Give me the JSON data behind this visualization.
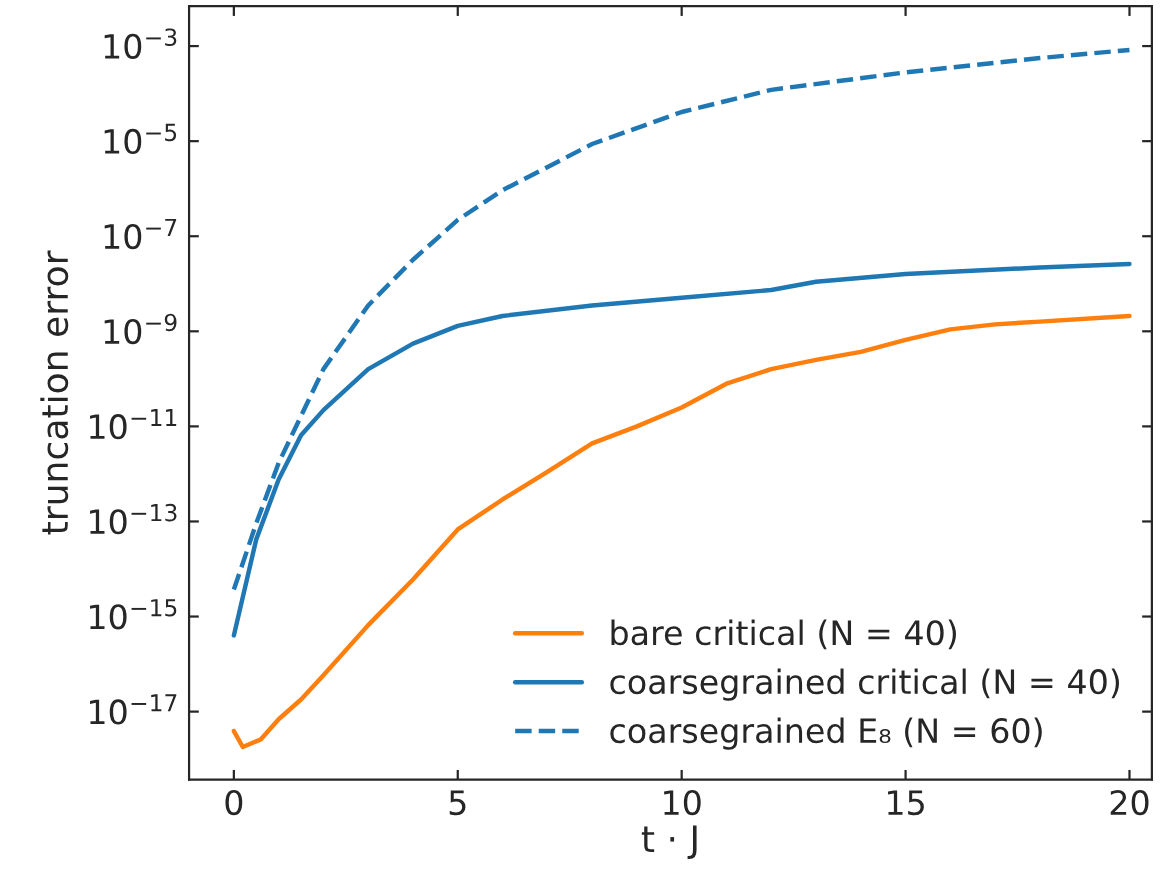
{
  "chart_data": {
    "type": "line",
    "xlabel": "t · J",
    "ylabel": "truncation error",
    "log": "y",
    "grid": false,
    "legend": "bottom right",
    "marker": "none",
    "xlim": [
      -1,
      20.5
    ],
    "xticks": [
      0,
      5,
      10,
      15,
      20
    ],
    "ylim": [
      3.7e-19,
      0.0069
    ],
    "yticks": [
      {
        "value": 1e-17,
        "label": "10$^{−17}$"
      },
      {
        "value": 1e-15,
        "label": "10$^{−15}$"
      },
      {
        "value": 1e-13,
        "label": "10$^{−13}$"
      },
      {
        "value": 1e-11,
        "label": "10$^{−11}$"
      },
      {
        "value": 1e-09,
        "label": "10$^{−9}$"
      },
      {
        "value": 1e-07,
        "label": "10$^{−7}$"
      },
      {
        "value": 1e-05,
        "label": "10$^{−5}$"
      },
      {
        "value": 0.001,
        "label": "10$^{−3}$"
      }
    ],
    "series": [
      {
        "name": "bare critical (N = 40)",
        "color": "#ff7f0e",
        "line_style": "solid",
        "x": [
          0,
          0.2,
          0.6,
          1,
          1.5,
          2,
          3,
          4,
          5,
          6,
          7,
          8,
          9,
          10,
          11,
          12,
          13,
          14,
          15,
          16,
          17,
          18,
          20
        ],
        "values": [
          3.9e-18,
          1.8e-18,
          2.6e-18,
          6.9e-18,
          1.8e-17,
          5.8e-17,
          6.6e-16,
          6e-15,
          6.8e-14,
          2.9e-13,
          1.1e-12,
          4.4e-12,
          1e-11,
          2.5e-11,
          7.9e-11,
          1.6e-10,
          2.5e-10,
          3.7e-10,
          6.6e-10,
          1.1e-09,
          1.4e-09,
          1.6e-09,
          2.1e-09
        ]
      },
      {
        "name": "coarsegrained critical (N = 40)",
        "color": "#1f77b4",
        "line_style": "solid",
        "x": [
          0,
          0.5,
          1,
          1.5,
          2,
          3,
          4,
          5,
          6,
          8,
          10,
          12,
          13,
          15,
          18,
          20
        ],
        "values": [
          4e-16,
          4.2e-14,
          7.6e-13,
          6.5e-12,
          2.2e-11,
          1.6e-10,
          5.5e-10,
          1.3e-09,
          2.1e-09,
          3.5e-09,
          5.1e-09,
          7.4e-09,
          1.1e-08,
          1.6e-08,
          2.2e-08,
          2.6e-08
        ]
      },
      {
        "name": "coarsegrained E₈ (N = 60)",
        "color": "#1f77b4",
        "line_style": "dashed",
        "x": [
          0,
          0.5,
          1,
          2,
          3,
          4,
          5,
          6,
          8,
          10,
          12,
          15,
          18,
          20
        ],
        "values": [
          3.7e-15,
          9.1e-14,
          1.7e-12,
          1.6e-10,
          3.5e-09,
          3.2e-08,
          2.2e-07,
          9.3e-07,
          8.7e-06,
          4.1e-05,
          0.00012,
          0.00028,
          0.00056,
          0.00083
        ]
      }
    ]
  }
}
